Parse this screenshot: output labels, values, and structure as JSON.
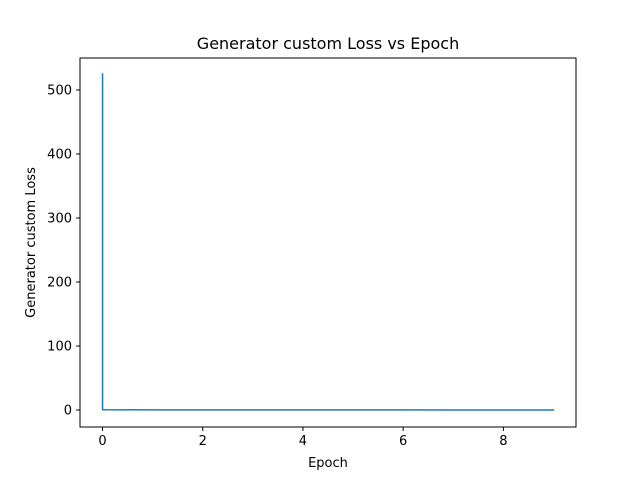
{
  "chart_data": {
    "type": "line",
    "title": "Generator custom Loss vs Epoch",
    "xlabel": "Epoch",
    "ylabel": "Generator custom Loss",
    "xlim": [
      -0.45,
      9.45
    ],
    "ylim": [
      -26.5,
      550
    ],
    "x_ticks": [
      0,
      2,
      4,
      6,
      8
    ],
    "y_ticks": [
      0,
      100,
      200,
      300,
      400,
      500
    ],
    "grid": false,
    "series": [
      {
        "color": "#1f77b4",
        "x": [
          0,
          0,
          0,
          0.05,
          1,
          2,
          3,
          4,
          5,
          6,
          7,
          8,
          9
        ],
        "y": [
          525,
          2,
          0.5,
          0.4,
          0.3,
          0.25,
          0.2,
          0.2,
          0.18,
          0.17,
          0.16,
          0.15,
          0.15
        ]
      }
    ]
  }
}
